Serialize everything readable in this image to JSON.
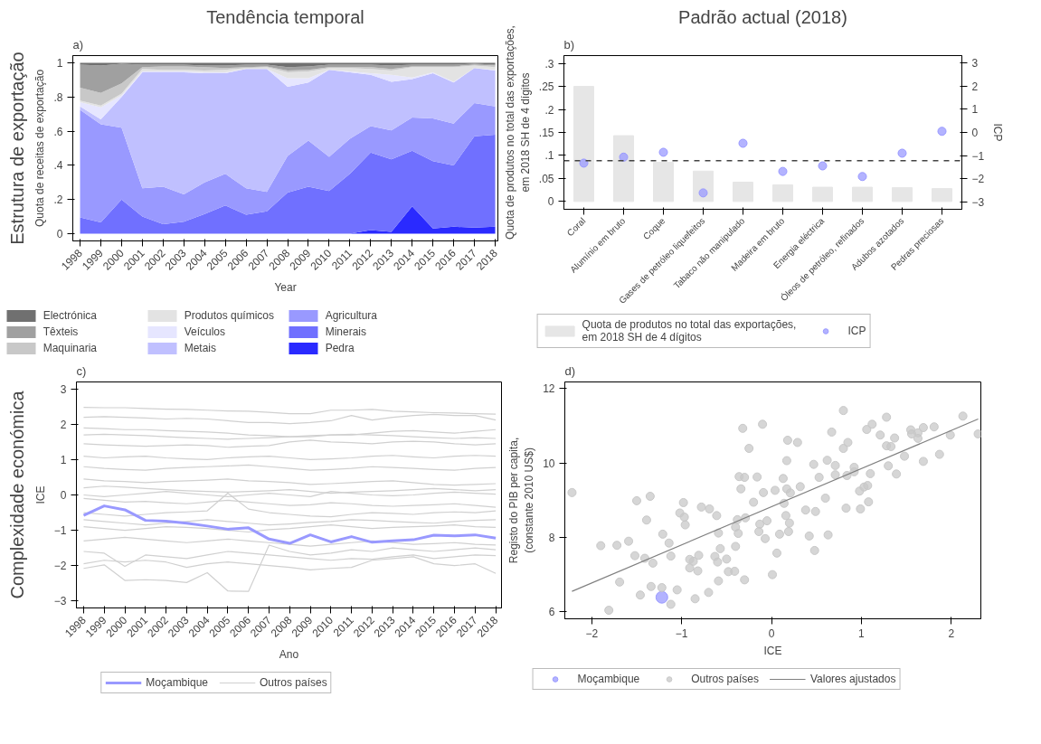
{
  "chart_data": [
    {
      "type": "area",
      "stacked": true,
      "title": "Tendência temporal",
      "annotations": [
        "a)",
        "Estrutura de exportação"
      ],
      "xlabel": "Year",
      "ylabel": "Quota de receitas de exportação",
      "legend": "bottom",
      "x": [
        1998,
        1999,
        2000,
        2001,
        2002,
        2003,
        2004,
        2005,
        2006,
        2007,
        2008,
        2009,
        2010,
        2011,
        2012,
        2013,
        2014,
        2015,
        2016,
        2017,
        2018
      ],
      "xlim": [
        1997.65,
        2018.13
      ],
      "xticks": [
        1998,
        1999,
        2000,
        2001,
        2002,
        2003,
        2004,
        2005,
        2006,
        2007,
        2008,
        2009,
        2010,
        2011,
        2012,
        2013,
        2014,
        2015,
        2016,
        2017,
        2018
      ],
      "ylim": [
        -0.043,
        1.043
      ],
      "yticks": [
        0,
        {
          "value": 0.2,
          "label": ".2"
        },
        {
          "value": 0.4,
          "label": ".4"
        },
        {
          "value": 0.6,
          "label": ".6"
        },
        {
          "value": 0.8,
          "label": ".8"
        },
        1
      ],
      "series": [
        {
          "name": "Pedra",
          "color": "#2a2aff",
          "values": [
            0,
            0,
            0,
            0,
            0,
            0,
            0,
            0,
            0,
            0,
            0,
            0,
            0,
            0,
            0.02,
            0.01,
            0.16,
            0.03,
            0.04,
            0.035,
            0.04
          ]
        },
        {
          "name": "Minerais",
          "color": "#7070ff",
          "values": [
            0.095,
            0.065,
            0.2,
            0.1,
            0.055,
            0.07,
            0.115,
            0.165,
            0.11,
            0.13,
            0.24,
            0.275,
            0.25,
            0.35,
            0.455,
            0.425,
            0.325,
            0.395,
            0.36,
            0.535,
            0.54
          ]
        },
        {
          "name": "Agricultura",
          "color": "#9999ff",
          "values": [
            0.63,
            0.575,
            0.42,
            0.165,
            0.22,
            0.16,
            0.185,
            0.185,
            0.155,
            0.115,
            0.215,
            0.27,
            0.2,
            0.205,
            0.155,
            0.17,
            0.195,
            0.25,
            0.245,
            0.195,
            0.165
          ]
        },
        {
          "name": "Metais",
          "color": "#c0c0ff",
          "values": [
            0.02,
            0.03,
            0.18,
            0.68,
            0.67,
            0.715,
            0.64,
            0.59,
            0.7,
            0.72,
            0.405,
            0.34,
            0.51,
            0.39,
            0.3,
            0.285,
            0.225,
            0.265,
            0.24,
            0.205,
            0.21
          ]
        },
        {
          "name": "Veículos",
          "color": "#e6e6ff",
          "values": [
            0.025,
            0.07,
            0.01,
            0.005,
            0.005,
            0.005,
            0.005,
            0.005,
            0,
            0,
            0.05,
            0.025,
            0,
            0.005,
            0.01,
            0.04,
            0.01,
            0.005,
            0.005,
            0,
            0.005
          ]
        },
        {
          "name": "Produtos químicos",
          "color": "#e3e3e3",
          "values": [
            0.01,
            0.01,
            0.01,
            0.015,
            0.01,
            0.01,
            0.01,
            0.015,
            0.005,
            0.01,
            0.035,
            0.04,
            0.01,
            0.02,
            0.025,
            0.025,
            0.06,
            0.03,
            0.085,
            0.015,
            0.015
          ]
        },
        {
          "name": "Maquinaria",
          "color": "#c8c8c8",
          "values": [
            0.075,
            0.075,
            0.06,
            0.01,
            0.02,
            0.02,
            0.02,
            0.01,
            0.005,
            0.005,
            0.01,
            0.01,
            0.005,
            0.005,
            0.01,
            0.01,
            0.005,
            0.005,
            0.005,
            0.005,
            0.01
          ]
        },
        {
          "name": "Têxteis",
          "color": "#a0a0a0",
          "values": [
            0.135,
            0.16,
            0.115,
            0.015,
            0.01,
            0.01,
            0.01,
            0.015,
            0.015,
            0.01,
            0.02,
            0.02,
            0.015,
            0.015,
            0.015,
            0.02,
            0.01,
            0.01,
            0.01,
            0.005,
            0.005
          ]
        },
        {
          "name": "Electrónica",
          "color": "#707070",
          "values": [
            0.01,
            0.015,
            0.005,
            0.01,
            0.01,
            0.01,
            0.015,
            0.015,
            0.01,
            0.01,
            0.025,
            0.02,
            0.01,
            0.01,
            0.01,
            0.015,
            0.01,
            0.01,
            0.01,
            0.005,
            0.01
          ]
        }
      ]
    },
    {
      "type": "bar",
      "title": "Padrão actual (2018)",
      "annotations": [
        "b)"
      ],
      "ylabel": "Quota de produtos no total das exportações,\nem 2018 SH de 4 dígitos",
      "y2label": "ICP",
      "legend": "bottom",
      "categories": [
        "Coral",
        "Alumínio em bruto",
        "Coque",
        "Gases de petróleo liquefeitos",
        "Tabaco não manipulado",
        "Madeira em bruto",
        "Energia eléctrica",
        "Óleos de petróleo, refinados",
        "Adubos azotados",
        "Pedras preciosas"
      ],
      "ylim": [
        -0.017,
        0.317
      ],
      "yticks": [
        0,
        {
          "value": 0.05,
          "label": ".05"
        },
        {
          "value": 0.1,
          "label": ".1"
        },
        {
          "value": 0.15,
          "label": ".15"
        },
        {
          "value": 0.2,
          "label": ".2"
        },
        {
          "value": 0.25,
          "label": ".25"
        },
        {
          "value": 0.3,
          "label": ".3"
        }
      ],
      "y2lim": [
        -3.33,
        3.33
      ],
      "y2ticks": [
        -3,
        -2,
        -1,
        0,
        1,
        2,
        3
      ],
      "ref_lines": [
        {
          "axis": "y2",
          "value": -1.22,
          "color": "#444444",
          "line_style": "dashed"
        }
      ],
      "series": [
        {
          "name": "Quota de produtos no total das exportações,\nem 2018 SH de 4 dígitos",
          "color": "#e6e6e6",
          "values": [
            0.25,
            0.143,
            0.085,
            0.066,
            0.042,
            0.036,
            0.031,
            0.031,
            0.03,
            0.028
          ]
        },
        {
          "name": "ICP",
          "type": "scatter",
          "axis": "y2",
          "color": "#9999ff",
          "marker": "circle",
          "values": [
            -1.33,
            -1.07,
            -0.86,
            -2.62,
            -0.47,
            -1.69,
            -1.45,
            -1.91,
            -0.9,
            0.05
          ]
        }
      ]
    },
    {
      "type": "line",
      "annotations": [
        "c)",
        "Complexidade económica"
      ],
      "xlabel": "Ano",
      "ylabel": "ICE",
      "legend": "bottom",
      "x": [
        1998,
        1999,
        2000,
        2001,
        2002,
        2003,
        2004,
        2005,
        2006,
        2007,
        2008,
        2009,
        2010,
        2011,
        2012,
        2013,
        2014,
        2015,
        2016,
        2017,
        2018
      ],
      "xlim": [
        1997.65,
        2018.28
      ],
      "xticks": [
        1998,
        1999,
        2000,
        2001,
        2002,
        2003,
        2004,
        2005,
        2006,
        2007,
        2008,
        2009,
        2010,
        2011,
        2012,
        2013,
        2014,
        2015,
        2016,
        2017,
        2018
      ],
      "ylim": [
        -3.2,
        3.2
      ],
      "yticks": [
        -3,
        -2,
        -1,
        0,
        1,
        2,
        3
      ],
      "series": [
        {
          "name": "Moçambique",
          "color": "#9999ff",
          "values": [
            -0.58,
            -0.31,
            -0.42,
            -0.72,
            -0.74,
            -0.8,
            -0.88,
            -0.97,
            -0.93,
            -1.25,
            -1.37,
            -1.13,
            -1.33,
            -1.18,
            -1.34,
            -1.3,
            -1.27,
            -1.14,
            -1.16,
            -1.13,
            -1.22
          ]
        },
        {
          "name": "Outros países",
          "color": "#d0d0d0",
          "values": [
            2.48,
            2.47,
            2.47,
            2.45,
            2.43,
            2.42,
            2.4,
            2.38,
            2.37,
            2.34,
            2.3,
            2.3,
            2.4,
            2.4,
            2.42,
            2.37,
            2.35,
            2.33,
            2.32,
            2.3,
            2.29
          ]
        },
        {
          "color": "#d0d0d0",
          "values": [
            2.2,
            2.22,
            2.2,
            2.18,
            2.15,
            2.17,
            2.15,
            2.1,
            2.05,
            2.05,
            2.02,
            2.05,
            2.1,
            2.25,
            2.12,
            2.2,
            2.25,
            2.28,
            2.25,
            2.25,
            2.12
          ]
        },
        {
          "color": "#d0d0d0",
          "values": [
            1.9,
            1.88,
            1.85,
            1.85,
            1.82,
            1.8,
            1.78,
            1.75,
            1.7,
            1.68,
            1.65,
            1.65,
            1.7,
            1.7,
            1.75,
            1.8,
            1.82,
            1.78,
            1.75,
            1.8,
            1.85
          ]
        },
        {
          "color": "#d0d0d0",
          "values": [
            1.7,
            1.72,
            1.7,
            1.68,
            1.65,
            1.62,
            1.6,
            1.58,
            1.6,
            1.62,
            1.65,
            1.68,
            1.7,
            1.72,
            1.7,
            1.68,
            1.65,
            1.62,
            1.6,
            1.62,
            1.6
          ]
        },
        {
          "color": "#d0d0d0",
          "values": [
            1.45,
            1.42,
            1.4,
            1.38,
            1.4,
            1.42,
            1.4,
            1.35,
            1.38,
            1.4,
            1.5,
            1.55,
            1.5,
            1.48,
            1.45,
            1.5,
            1.52,
            1.5,
            1.45,
            1.42,
            1.45
          ]
        },
        {
          "color": "#d0d0d0",
          "values": [
            1.1,
            1.05,
            1.08,
            1.1,
            1.05,
            1.02,
            1.0,
            1.05,
            1.08,
            1.1,
            1.05,
            1.0,
            1.02,
            1.05,
            1.1,
            1.12,
            1.08,
            1.05,
            1.1,
            1.12,
            1.1
          ]
        },
        {
          "color": "#d0d0d0",
          "values": [
            0.8,
            0.75,
            0.72,
            0.7,
            0.75,
            0.78,
            0.8,
            0.82,
            0.85,
            0.8,
            0.75,
            0.7,
            0.72,
            0.75,
            0.8,
            0.78,
            0.75,
            0.72,
            0.7,
            0.75,
            0.78
          ]
        },
        {
          "color": "#d0d0d0",
          "values": [
            0.45,
            0.4,
            0.38,
            0.35,
            0.38,
            0.4,
            0.42,
            0.45,
            0.4,
            0.38,
            0.35,
            0.3,
            0.32,
            0.35,
            0.38,
            0.4,
            0.35,
            0.3,
            0.28,
            0.3,
            0.32
          ]
        },
        {
          "color": "#d0d0d0",
          "values": [
            0.2,
            0.25,
            0.22,
            0.18,
            0.15,
            0.12,
            0.1,
            0.08,
            0.1,
            0.12,
            0.15,
            0.1,
            0.05,
            0.08,
            0.1,
            0.12,
            0.15,
            0.18,
            0.15,
            0.12,
            0.15
          ]
        },
        {
          "color": "#d0d0d0",
          "values": [
            0.0,
            -0.05,
            0.0,
            0.05,
            0.1,
            0.05,
            0.0,
            -0.05,
            0.0,
            0.05,
            0.0,
            -0.05,
            0.1,
            0.05,
            0.0,
            -0.02,
            0.0,
            0.05,
            0.08,
            0.05,
            0.02
          ]
        },
        {
          "color": "#d0d0d0",
          "values": [
            -0.1,
            -0.15,
            -0.2,
            -0.18,
            -0.22,
            -0.25,
            -0.2,
            -0.15,
            -0.2,
            -0.25,
            -0.3,
            -0.28,
            -0.22,
            -0.25,
            -0.3,
            -0.32,
            -0.3,
            -0.28,
            -0.25,
            -0.3,
            -0.35
          ]
        },
        {
          "color": "#d0d0d0",
          "values": [
            -0.5,
            -0.55,
            -0.6,
            -0.55,
            -0.5,
            -0.48,
            -0.45,
            0.05,
            -0.4,
            -0.5,
            -0.55,
            -0.6,
            -0.62,
            -0.55,
            -0.5,
            -0.52,
            -0.55,
            -0.5,
            -0.48,
            -0.5,
            -0.45
          ]
        },
        {
          "color": "#d0d0d0",
          "values": [
            -0.7,
            -0.75,
            -0.8,
            -0.85,
            -0.8,
            -0.75,
            -0.7,
            -0.75,
            -0.8,
            -0.85,
            -0.82,
            -0.78,
            -0.75,
            -0.7,
            -0.72,
            -0.75,
            -0.78,
            -0.8,
            -0.75,
            -0.72,
            -0.7
          ]
        },
        {
          "color": "#d0d0d0",
          "values": [
            -0.9,
            -0.95,
            -1.0,
            -0.95,
            -0.9,
            -0.92,
            -0.95,
            -1.0,
            -1.05,
            -0.98,
            -0.95,
            -0.9,
            -0.85,
            -0.9,
            -0.95,
            -0.92,
            -0.9,
            -0.88,
            -0.85,
            -0.9,
            -0.92
          ]
        },
        {
          "color": "#d0d0d0",
          "values": [
            -1.3,
            -1.25,
            -1.2,
            -1.25,
            -1.3,
            -1.35,
            -1.3,
            -1.25,
            -1.3,
            -1.35,
            -1.4,
            -1.45,
            -1.4,
            -1.35,
            -1.3,
            -1.35,
            -1.4,
            -1.38,
            -1.35,
            -1.4,
            -1.42
          ]
        },
        {
          "color": "#d0d0d0",
          "values": [
            -1.6,
            -1.65,
            -2.02,
            -1.7,
            -1.75,
            -1.8,
            -1.7,
            -1.6,
            -1.65,
            -1.7,
            -1.75,
            -1.8,
            -1.85,
            -1.8,
            -1.82,
            -1.75,
            -1.7,
            -1.8,
            -1.75,
            -1.7,
            -1.72
          ]
        },
        {
          "color": "#d0d0d0",
          "values": [
            -1.95,
            -1.85,
            -1.9,
            -1.85,
            -1.9,
            -2.05,
            -1.95,
            -1.9,
            -1.95,
            -2.0,
            -2.05,
            -2.12,
            -2.08,
            -2.05,
            -1.85,
            -1.8,
            -1.75,
            -1.95,
            -2.0,
            -1.95,
            -2.22
          ]
        },
        {
          "color": "#d0d0d0",
          "values": [
            -2.08,
            -1.98,
            -2.42,
            -2.4,
            -2.42,
            -2.48,
            -2.2,
            -2.72,
            -2.73,
            -1.42,
            -1.6,
            -1.7,
            -1.65,
            -1.55,
            -1.6,
            -1.5,
            -1.55,
            -1.6,
            -1.55,
            -1.5,
            -1.55
          ]
        }
      ]
    },
    {
      "type": "scatter",
      "annotations": [
        "d)"
      ],
      "xlabel": "ICE",
      "ylabel": "Registo do PIB per capita,\n(constante 2010 US$)",
      "legend": "bottom",
      "xlim": [
        -2.3,
        2.33
      ],
      "xticks": [
        -2,
        -1,
        0,
        1,
        2
      ],
      "ylim": [
        5.8,
        12.18
      ],
      "yticks": [
        6,
        8,
        10,
        12
      ],
      "series": [
        {
          "name": "Moçambique",
          "color": "#9999ff",
          "marker": "circle",
          "x": [
            -1.22
          ],
          "values": [
            6.38
          ]
        },
        {
          "name": "Outros países",
          "color": "#c8c8c8",
          "marker": "circle",
          "x": [
            -2.22,
            -1.9,
            -1.81,
            -1.72,
            -1.69,
            -1.59,
            -1.52,
            -1.5,
            -1.46,
            -1.41,
            -1.39,
            -1.35,
            -1.34,
            -1.32,
            -1.22,
            -1.21,
            -1.14,
            -1.12,
            -1.12,
            -1.05,
            -1.02,
            -0.98,
            -0.97,
            -0.96,
            -0.91,
            -0.91,
            -0.87,
            -0.85,
            -0.82,
            -0.81,
            -0.78,
            -0.7,
            -0.69,
            -0.63,
            -0.61,
            -0.6,
            -0.59,
            -0.59,
            -0.57,
            -0.5,
            -0.48,
            -0.41,
            -0.4,
            -0.4,
            -0.38,
            -0.37,
            -0.36,
            -0.34,
            -0.32,
            -0.3,
            -0.3,
            -0.29,
            -0.25,
            -0.2,
            -0.16,
            -0.14,
            -0.13,
            -0.1,
            -0.09,
            -0.07,
            -0.05,
            0.01,
            0.04,
            0.06,
            0.09,
            0.13,
            0.14,
            0.16,
            0.17,
            0.17,
            0.18,
            0.19,
            0.2,
            0.21,
            0.29,
            0.32,
            0.38,
            0.42,
            0.47,
            0.48,
            0.49,
            0.53,
            0.6,
            0.62,
            0.63,
            0.67,
            0.71,
            0.71,
            0.8,
            0.8,
            0.83,
            0.84,
            0.85,
            0.92,
            0.92,
            0.99,
            0.98,
            1.03,
            1.06,
            1.07,
            1.08,
            1.1,
            1.12,
            1.21,
            1.28,
            1.28,
            1.3,
            1.33,
            1.37,
            1.39,
            1.48,
            1.55,
            1.56,
            1.63,
            1.63,
            1.69,
            1.69,
            1.81,
            1.87,
            1.99,
            2.13,
            2.3
          ],
          "values": [
            9.2,
            7.77,
            6.03,
            7.78,
            6.79,
            7.89,
            7.5,
            8.98,
            6.44,
            7.43,
            8.46,
            9.1,
            6.67,
            7.3,
            6.64,
            8.08,
            7.84,
            6.19,
            7.49,
            6.58,
            8.65,
            8.93,
            8.54,
            8.33,
            7.4,
            7.17,
            7.35,
            6.34,
            7.09,
            7.51,
            8.81,
            6.51,
            8.76,
            7.48,
            8.58,
            7.33,
            8.11,
            6.82,
            7.69,
            7.41,
            7.07,
            7.08,
            7.75,
            8.27,
            8.47,
            8.1,
            9.63,
            9.3,
            10.93,
            6.85,
            9.61,
            8.52,
            10.39,
            8.94,
            9.62,
            8.15,
            8.35,
            11.04,
            9.2,
            7.96,
            8.44,
            6.99,
            9.26,
            7.57,
            8.08,
            9.58,
            8.91,
            8.58,
            10.06,
            9.3,
            10.61,
            8.15,
            8.38,
            9.19,
            10.55,
            9.36,
            8.73,
            8.03,
            9.96,
            7.64,
            8.69,
            9.61,
            9.05,
            10.07,
            8.06,
            10.83,
            9.93,
            9.68,
            11.41,
            10.39,
            8.78,
            9.66,
            10.55,
            9.88,
            9.76,
            8.76,
            9.24,
            9.35,
            10.9,
            9.39,
            8.95,
            9.71,
            11.04,
            10.75,
            11.23,
            10.46,
            9.92,
            10.44,
            10.67,
            9.7,
            10.18,
            10.89,
            10.78,
            10.81,
            10.66,
            10.95,
            10.04,
            10.97,
            10.23,
            10.75,
            11.26,
            10.78
          ]
        },
        {
          "name": "Valores ajustados",
          "type": "line",
          "color": "#808080",
          "x": [
            -2.22,
            2.3
          ],
          "values": [
            6.54,
            11.18
          ]
        }
      ]
    }
  ]
}
